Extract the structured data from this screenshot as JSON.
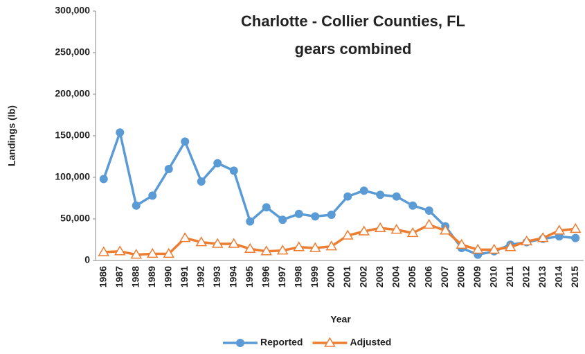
{
  "chart_data": {
    "type": "line",
    "title": "Charlotte - Collier Counties, FL",
    "subtitle": "gears combined",
    "xlabel": "Year",
    "ylabel": "Landings (lb)",
    "categories": [
      "1986",
      "1987",
      "1988",
      "1989",
      "1990",
      "1991",
      "1992",
      "1993",
      "1994",
      "1995",
      "1996",
      "1997",
      "1998",
      "1999",
      "2000",
      "2001",
      "2002",
      "2003",
      "2004",
      "2005",
      "2006",
      "2007",
      "2008",
      "2009",
      "2010",
      "2011",
      "2012",
      "2013",
      "2014",
      "2015"
    ],
    "series": [
      {
        "name": "Reported",
        "color": "#5b9bd5",
        "marker": "circle",
        "values": [
          98000,
          154000,
          66000,
          78000,
          110000,
          143000,
          95000,
          117000,
          108000,
          47000,
          64000,
          49000,
          56000,
          53000,
          55000,
          77000,
          84000,
          79000,
          77000,
          66000,
          60000,
          41000,
          15000,
          7000,
          11000,
          19000,
          22000,
          26000,
          29000,
          27000
        ]
      },
      {
        "name": "Adjusted",
        "color": "#ed7d31",
        "marker": "triangle",
        "values": [
          10000,
          11000,
          7000,
          8000,
          8000,
          27000,
          22000,
          20000,
          20000,
          14000,
          11000,
          12000,
          16000,
          15000,
          17000,
          30000,
          35000,
          39000,
          37000,
          33000,
          43000,
          36000,
          19000,
          13000,
          13000,
          16000,
          23000,
          27000,
          36000,
          38000
        ]
      }
    ],
    "ylim": [
      0,
      300000
    ],
    "yticks": [
      0,
      {
        "value": 50000,
        "label": "50,000"
      },
      {
        "value": 100000,
        "label": "100,000"
      },
      {
        "value": 150000,
        "label": "150,000"
      },
      {
        "value": 200000,
        "label": "200,000"
      },
      {
        "value": 250000,
        "label": "250,000"
      },
      {
        "value": 300000,
        "label": "300,000"
      }
    ],
    "grid": false,
    "legend": "bottom"
  }
}
